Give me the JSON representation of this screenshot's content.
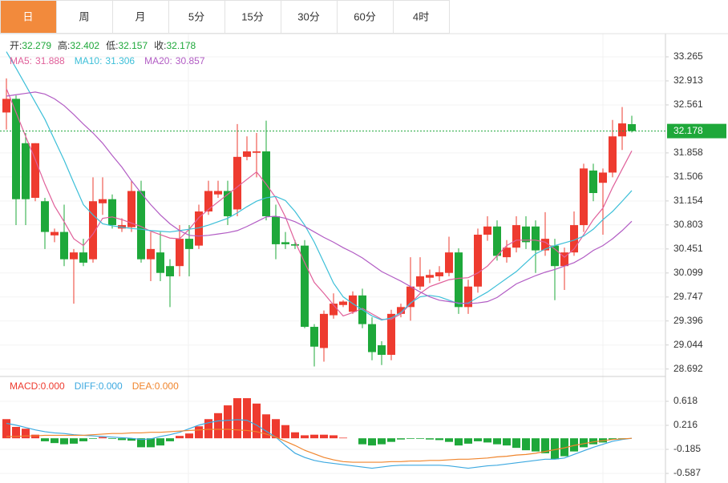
{
  "chart_data": [
    {
      "type": "candlestick",
      "tabs": [
        "日",
        "周",
        "月",
        "5分",
        "15分",
        "30分",
        "60分",
        "4时"
      ],
      "active_tab": 0,
      "active_tab_color": "#f28a3c",
      "legend_ohlc": [
        {
          "label": "开:",
          "value": 32.279
        },
        {
          "label": "高:",
          "value": 32.402
        },
        {
          "label": "低:",
          "value": 32.157
        },
        {
          "label": "收:",
          "value": 32.178
        }
      ],
      "legend_value_color": "#1ea83a",
      "open": [
        32.45,
        32.65,
        32.0,
        31.2,
        31.15,
        30.65,
        30.7,
        30.3,
        30.4,
        30.3,
        31.12,
        31.18,
        30.75,
        30.77,
        31.3,
        30.3,
        30.4,
        30.2,
        30.2,
        30.6,
        30.5,
        31.0,
        31.25,
        31.3,
        31.03,
        31.8,
        31.86,
        31.88,
        30.93,
        30.55,
        30.52,
        30.5,
        29.31,
        29.0,
        29.48,
        29.63,
        29.53,
        29.77,
        29.35,
        29.04,
        28.9,
        29.5,
        29.6,
        29.9,
        30.03,
        30.05,
        30.1,
        30.4,
        29.6,
        29.9,
        30.66,
        30.78,
        30.33,
        30.47,
        30.78,
        30.78,
        30.43,
        30.5,
        30.2,
        30.4,
        30.8,
        31.6,
        31.42,
        31.57,
        32.1,
        32.279
      ],
      "high": [
        32.95,
        32.7,
        32.15,
        32.0,
        31.2,
        30.75,
        31.1,
        30.45,
        30.6,
        31.5,
        31.5,
        31.25,
        30.9,
        31.45,
        31.45,
        30.7,
        30.7,
        30.3,
        30.8,
        30.8,
        31.1,
        31.45,
        31.45,
        31.45,
        32.28,
        32.1,
        32.15,
        32.33,
        31.1,
        30.7,
        30.58,
        30.58,
        29.35,
        29.55,
        29.8,
        29.7,
        29.83,
        29.87,
        29.45,
        29.1,
        29.56,
        29.65,
        30.33,
        30.33,
        30.15,
        30.2,
        30.63,
        30.46,
        30.0,
        30.75,
        30.93,
        30.87,
        30.58,
        30.93,
        30.93,
        30.87,
        30.99,
        30.6,
        30.47,
        31.0,
        31.7,
        31.7,
        31.63,
        32.34,
        32.53,
        32.402
      ],
      "low": [
        32.2,
        30.8,
        30.8,
        31.15,
        30.45,
        30.55,
        30.2,
        29.65,
        30.2,
        30.25,
        30.95,
        30.75,
        30.7,
        30.7,
        30.25,
        29.98,
        29.98,
        29.6,
        30.05,
        30.05,
        30.45,
        30.95,
        31.2,
        30.8,
        30.93,
        31.75,
        31.5,
        30.87,
        30.3,
        30.45,
        30.45,
        29.29,
        28.73,
        28.8,
        29.43,
        29.6,
        29.5,
        29.29,
        28.82,
        28.75,
        28.82,
        29.45,
        29.4,
        29.85,
        29.95,
        29.98,
        30.05,
        29.5,
        29.5,
        29.81,
        30.57,
        30.28,
        30.25,
        30.4,
        30.45,
        30.1,
        30.35,
        29.7,
        29.85,
        30.35,
        30.7,
        31.15,
        30.66,
        31.5,
        31.9,
        32.157
      ],
      "close": [
        32.65,
        31.18,
        31.18,
        32.0,
        30.7,
        30.7,
        30.3,
        30.4,
        30.25,
        31.15,
        31.18,
        30.8,
        30.8,
        31.3,
        30.3,
        30.45,
        30.1,
        30.05,
        30.6,
        30.45,
        31.0,
        31.3,
        31.3,
        30.93,
        31.8,
        31.88,
        31.88,
        30.93,
        30.52,
        30.52,
        30.5,
        29.31,
        29.02,
        29.5,
        29.65,
        29.68,
        29.77,
        29.35,
        28.94,
        28.9,
        29.5,
        29.6,
        29.9,
        30.05,
        30.07,
        30.11,
        30.4,
        29.6,
        29.9,
        30.66,
        30.78,
        30.35,
        30.47,
        30.8,
        30.55,
        30.43,
        30.6,
        30.2,
        30.4,
        30.8,
        31.63,
        31.27,
        31.57,
        32.1,
        32.29,
        32.178
      ],
      "up_color": "#ee3b2f",
      "down_color": "#1ea83a",
      "series": [
        {
          "name": "MA5:",
          "value": 31.888,
          "color": "#e0609a",
          "values": [
            32.8,
            32.45,
            32.1,
            31.76,
            31.4,
            31.08,
            30.85,
            30.6,
            30.5,
            30.67,
            30.9,
            30.92,
            30.88,
            30.83,
            30.78,
            30.71,
            30.66,
            30.61,
            30.6,
            30.74,
            30.91,
            31.03,
            31.14,
            31.25,
            31.36,
            31.47,
            31.58,
            31.4,
            31.2,
            30.92,
            30.56,
            30.25,
            29.96,
            29.8,
            29.63,
            29.47,
            29.52,
            29.58,
            29.5,
            29.42,
            29.42,
            29.5,
            29.65,
            29.8,
            29.9,
            29.95,
            30.0,
            30.02,
            30.03,
            30.1,
            30.2,
            30.35,
            30.5,
            30.58,
            30.58,
            30.58,
            30.55,
            30.45,
            30.33,
            30.45,
            30.66,
            30.88,
            31.05,
            31.35,
            31.62,
            31.888
          ]
        },
        {
          "name": "MA10:",
          "value": 31.306,
          "color": "#3cbfd8",
          "values": [
            33.34,
            33.1,
            32.85,
            32.6,
            32.35,
            32.05,
            31.75,
            31.42,
            31.1,
            30.95,
            30.82,
            30.79,
            30.77,
            30.75,
            30.74,
            30.72,
            30.71,
            30.7,
            30.72,
            30.74,
            30.76,
            30.8,
            30.85,
            30.9,
            30.98,
            31.07,
            31.15,
            31.2,
            31.22,
            31.16,
            31.0,
            30.8,
            30.55,
            30.25,
            29.95,
            29.75,
            29.65,
            29.56,
            29.47,
            29.41,
            29.44,
            29.52,
            29.66,
            29.75,
            29.77,
            29.75,
            29.7,
            29.65,
            29.66,
            29.74,
            29.82,
            29.92,
            30.02,
            30.12,
            30.25,
            30.38,
            30.45,
            30.5,
            30.54,
            30.58,
            30.64,
            30.74,
            30.88,
            31.0,
            31.15,
            31.306
          ]
        },
        {
          "name": "MA20:",
          "value": 30.857,
          "color": "#b25cc4",
          "values": [
            32.69,
            32.71,
            32.73,
            32.75,
            32.72,
            32.65,
            32.55,
            32.42,
            32.28,
            32.15,
            32.0,
            31.82,
            31.65,
            31.45,
            31.27,
            31.1,
            30.95,
            30.82,
            30.72,
            30.65,
            30.64,
            30.65,
            30.67,
            30.69,
            30.72,
            30.78,
            30.85,
            30.92,
            30.93,
            30.9,
            30.85,
            30.78,
            30.7,
            30.62,
            30.55,
            30.47,
            30.4,
            30.32,
            30.22,
            30.12,
            30.05,
            29.98,
            29.9,
            29.82,
            29.75,
            29.7,
            29.68,
            29.66,
            29.65,
            29.66,
            29.68,
            29.74,
            29.84,
            29.94,
            30.0,
            30.06,
            30.11,
            30.15,
            30.2,
            30.25,
            30.33,
            30.43,
            30.5,
            30.6,
            30.72,
            30.857
          ]
        }
      ],
      "last_price": 32.178,
      "last_price_color": "#1ea83a",
      "ylim": [
        28.583,
        33.605
      ],
      "yticks": [
        33.265,
        32.913,
        32.561,
        31.858,
        31.506,
        31.154,
        30.803,
        30.451,
        30.099,
        29.747,
        29.396,
        29.044,
        28.692
      ],
      "grid": true
    },
    {
      "type": "macd",
      "series": [
        {
          "name": "MACD:",
          "value": 0,
          "value_label": "0.000",
          "color": "#ee3b2f",
          "down_color": "#1ea83a",
          "values": [
            0.32,
            0.19,
            0.16,
            0.06,
            -0.05,
            -0.08,
            -0.1,
            -0.09,
            -0.05,
            -0.01,
            0.02,
            -0.01,
            -0.03,
            -0.04,
            -0.15,
            -0.15,
            -0.12,
            -0.05,
            0.04,
            0.08,
            0.2,
            0.32,
            0.42,
            0.55,
            0.67,
            0.67,
            0.58,
            0.4,
            0.32,
            0.22,
            0.1,
            0.05,
            0.06,
            0.06,
            0.05,
            0.01,
            0,
            -0.1,
            -0.12,
            -0.1,
            -0.06,
            -0.02,
            -0.01,
            -0.01,
            -0.02,
            -0.03,
            -0.06,
            -0.12,
            -0.09,
            -0.05,
            -0.07,
            -0.1,
            -0.12,
            -0.16,
            -0.2,
            -0.22,
            -0.25,
            -0.35,
            -0.3,
            -0.22,
            -0.15,
            -0.1,
            -0.07,
            -0.02,
            -0.01,
            0
          ]
        },
        {
          "name": "DIFF:",
          "value": 0,
          "value_label": "0.000",
          "color": "#3da9e0",
          "values": [
            0.25,
            0.22,
            0.18,
            0.14,
            0.11,
            0.09,
            0.08,
            0.06,
            0.05,
            0.04,
            0.03,
            0.02,
            0.01,
            0.0,
            -0.02,
            -0.01,
            0.03,
            0.06,
            0.1,
            0.16,
            0.22,
            0.26,
            0.29,
            0.3,
            0.31,
            0.3,
            0.22,
            0.12,
            0.02,
            -0.12,
            -0.25,
            -0.32,
            -0.37,
            -0.4,
            -0.42,
            -0.44,
            -0.46,
            -0.48,
            -0.5,
            -0.48,
            -0.46,
            -0.45,
            -0.45,
            -0.45,
            -0.45,
            -0.45,
            -0.46,
            -0.48,
            -0.5,
            -0.48,
            -0.46,
            -0.45,
            -0.43,
            -0.41,
            -0.39,
            -0.37,
            -0.35,
            -0.35,
            -0.33,
            -0.27,
            -0.21,
            -0.15,
            -0.1,
            -0.05,
            -0.02,
            0
          ]
        },
        {
          "name": "DEA:",
          "value": 0,
          "value_label": "0.000",
          "color": "#f0852d",
          "values": [
            0.03,
            0.03,
            0.04,
            0.04,
            0.05,
            0.05,
            0.05,
            0.05,
            0.05,
            0.06,
            0.07,
            0.08,
            0.08,
            0.09,
            0.09,
            0.1,
            0.1,
            0.11,
            0.12,
            0.13,
            0.14,
            0.15,
            0.15,
            0.15,
            0.14,
            0.13,
            0.11,
            0.07,
            0.02,
            -0.05,
            -0.12,
            -0.2,
            -0.26,
            -0.32,
            -0.36,
            -0.39,
            -0.4,
            -0.4,
            -0.4,
            -0.4,
            -0.39,
            -0.39,
            -0.38,
            -0.38,
            -0.37,
            -0.37,
            -0.36,
            -0.35,
            -0.35,
            -0.34,
            -0.33,
            -0.31,
            -0.3,
            -0.28,
            -0.27,
            -0.25,
            -0.22,
            -0.19,
            -0.16,
            -0.12,
            -0.09,
            -0.06,
            -0.04,
            -0.02,
            -0.01,
            0
          ]
        }
      ],
      "ylim": [
        -0.747,
        1.006
      ],
      "yticks": [
        0.618,
        0.216,
        -0.185,
        -0.587
      ],
      "grid": true
    }
  ]
}
